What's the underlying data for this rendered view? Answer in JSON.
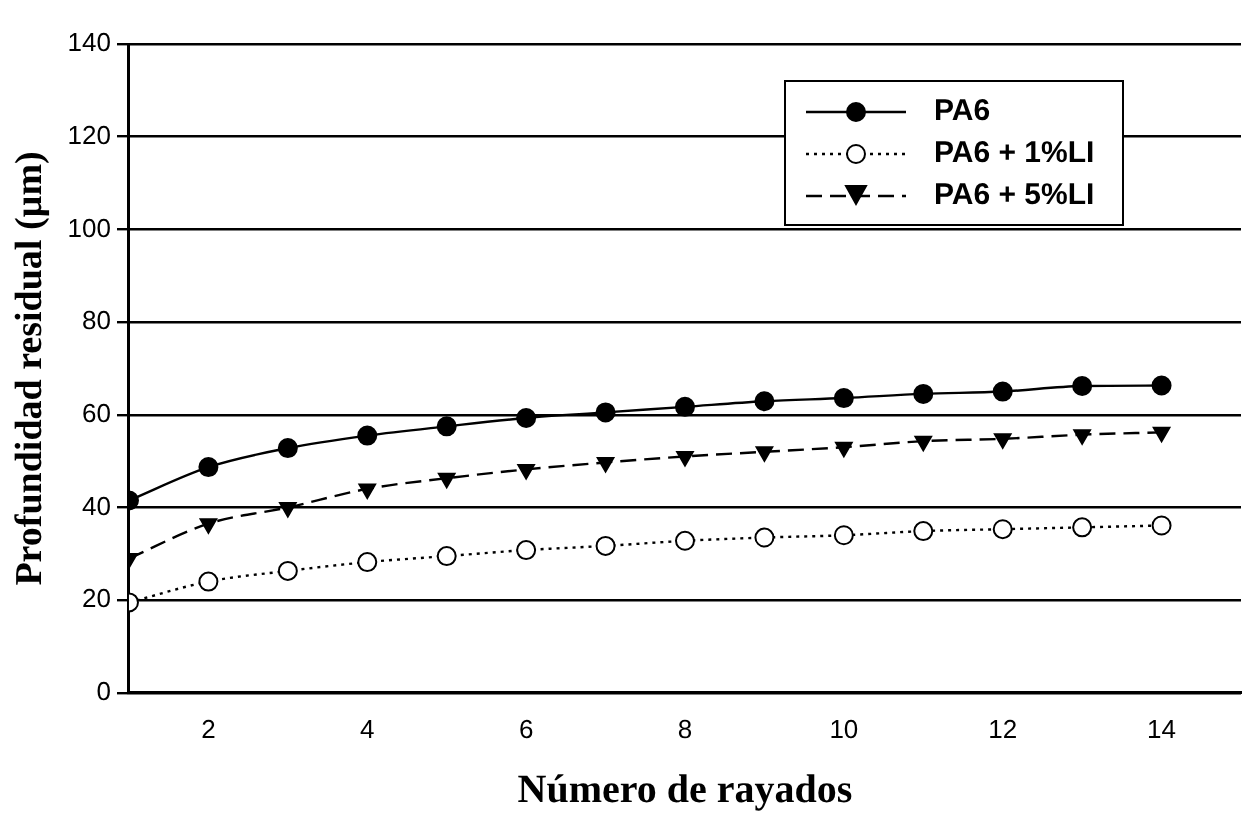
{
  "chart_data": {
    "type": "line",
    "xlabel": "Número de rayados",
    "ylabel": "Profundidad residual (µm)",
    "x": [
      1,
      2,
      3,
      4,
      5,
      6,
      7,
      8,
      9,
      10,
      11,
      12,
      13,
      14
    ],
    "xlim": [
      1,
      15
    ],
    "xticks": [
      2,
      4,
      6,
      8,
      10,
      12,
      14
    ],
    "ylim": [
      0,
      140
    ],
    "yticks": [
      0,
      20,
      40,
      60,
      80,
      100,
      120,
      140
    ],
    "grid": "y",
    "legend": "top right",
    "series": [
      {
        "name": "PA6",
        "color": "#000000",
        "marker": "circle",
        "line_style": "solid",
        "values": [
          41.5,
          48.7,
          52.8,
          55.5,
          57.5,
          59.3,
          60.5,
          61.7,
          62.9,
          63.6,
          64.5,
          65.0,
          66.2,
          66.3
        ]
      },
      {
        "name": "PA6 + 1%LI",
        "color": "#000000",
        "marker": "circle",
        "line_style": "dotted",
        "values": [
          19.5,
          24,
          26.3,
          28.2,
          29.5,
          30.8,
          31.7,
          32.8,
          33.5,
          34,
          34.9,
          35.3,
          35.7,
          36.1
        ]
      },
      {
        "name": "PA6 + 5%LI",
        "color": "#000000",
        "marker": "triangle",
        "line_style": "dashed",
        "values": [
          29,
          36.5,
          40,
          44,
          46.3,
          48.2,
          49.7,
          51,
          52,
          53,
          54.3,
          54.8,
          55.7,
          56.2
        ]
      }
    ]
  }
}
